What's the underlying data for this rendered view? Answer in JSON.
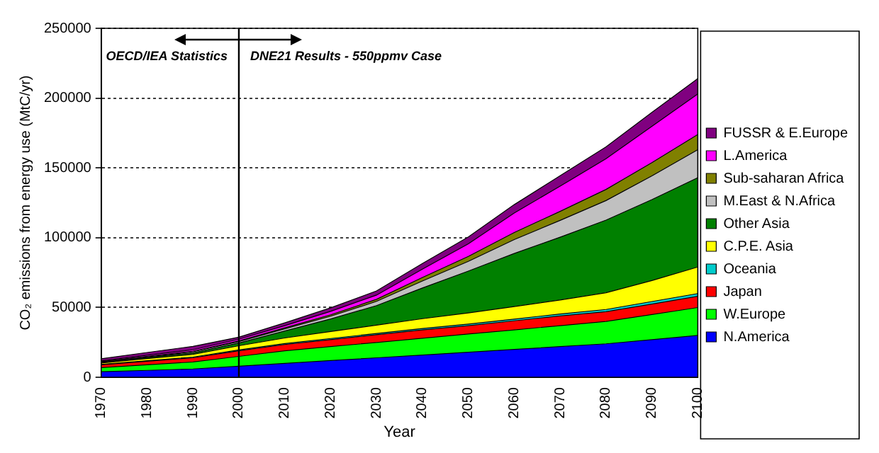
{
  "chart_data": {
    "type": "area",
    "stacked": true,
    "xlabel": "Year",
    "ylabel": "CO₂ emissions from energy use (MtC/yr)",
    "x": [
      1970,
      1980,
      1990,
      2000,
      2010,
      2020,
      2030,
      2040,
      2050,
      2060,
      2070,
      2080,
      2090,
      2100
    ],
    "xlim": [
      1970,
      2100
    ],
    "xticks": [
      1970,
      1980,
      1990,
      2000,
      2010,
      2020,
      2030,
      2040,
      2050,
      2060,
      2070,
      2080,
      2090,
      2100
    ],
    "ylim": [
      0,
      250000
    ],
    "yticks": [
      0,
      50000,
      100000,
      150000,
      200000,
      250000
    ],
    "grid": "y",
    "legend": "right",
    "ref_lines": [
      {
        "axis": "x",
        "value": 2000,
        "color": "#000000",
        "line_style": "solid"
      }
    ],
    "annotations": [
      "OECD/IEA Statistics",
      "DNE21 Results - 550ppmv Case"
    ],
    "series": [
      {
        "name": "N.America",
        "color": "#0000ff",
        "values": [
          4000,
          5000,
          6000,
          8000,
          10000,
          12000,
          14000,
          16000,
          18000,
          20000,
          22000,
          24000,
          27000,
          30000
        ]
      },
      {
        "name": "W.Europe",
        "color": "#00ff00",
        "values": [
          3000,
          4000,
          5000,
          7000,
          9000,
          10000,
          11000,
          12000,
          13000,
          14000,
          15000,
          16000,
          18000,
          20000
        ]
      },
      {
        "name": "Japan",
        "color": "#ff0000",
        "values": [
          2000,
          2500,
          3000,
          4000,
          4500,
          5000,
          5500,
          6000,
          6000,
          6500,
          7000,
          7000,
          7500,
          8000
        ]
      },
      {
        "name": "Oceania",
        "color": "#00cccc",
        "values": [
          300,
          400,
          500,
          600,
          700,
          800,
          900,
          1000,
          1100,
          1200,
          1400,
          1600,
          1800,
          2000
        ]
      },
      {
        "name": "C.P.E. Asia",
        "color": "#ffff00",
        "values": [
          1000,
          1500,
          2000,
          3000,
          4000,
          5000,
          6000,
          7000,
          8000,
          9000,
          10000,
          12000,
          15000,
          19000
        ]
      },
      {
        "name": "Other Asia",
        "color": "#008000",
        "values": [
          500,
          800,
          1000,
          2000,
          5000,
          9000,
          14000,
          22000,
          30000,
          38000,
          45000,
          52000,
          58000,
          64000
        ]
      },
      {
        "name": "M.East & N.Africa",
        "color": "#c0c0c0",
        "values": [
          300,
          500,
          800,
          1000,
          1500,
          2000,
          3000,
          5000,
          7000,
          10000,
          12000,
          14000,
          17000,
          20000
        ]
      },
      {
        "name": "Sub-saharan Africa",
        "color": "#808000",
        "values": [
          200,
          300,
          400,
          500,
          800,
          1000,
          1500,
          2500,
          3500,
          5000,
          6500,
          8000,
          9500,
          11000
        ]
      },
      {
        "name": "L.America",
        "color": "#ff00ff",
        "values": [
          500,
          800,
          1000,
          1200,
          1500,
          2500,
          3000,
          6000,
          9000,
          14000,
          18000,
          22000,
          26000,
          29000
        ]
      },
      {
        "name": "FUSSR & E.Europe",
        "color": "#800080",
        "values": [
          1500,
          2000,
          2500,
          1500,
          2000,
          2500,
          3000,
          4000,
          5000,
          6000,
          7500,
          8500,
          10000,
          11000
        ]
      }
    ]
  }
}
